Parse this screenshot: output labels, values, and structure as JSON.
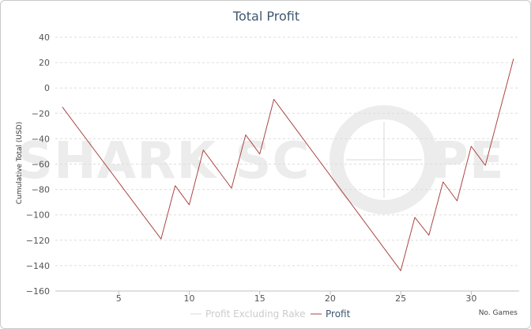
{
  "chart_data": {
    "type": "line",
    "title": "Total Profit",
    "xlabel": "No. Games",
    "ylabel": "Cumulative Total (USD)",
    "xlim": [
      0.5,
      33.4
    ],
    "ylim": [
      -160,
      40
    ],
    "x_ticks": [
      5,
      10,
      15,
      20,
      25,
      30
    ],
    "y_ticks": [
      40,
      20,
      0,
      -20,
      -40,
      -60,
      -80,
      -100,
      -120,
      -140,
      -160
    ],
    "y_tick_labels": [
      "40",
      "20",
      "0",
      "−20",
      "−40",
      "−60",
      "−80",
      "−100",
      "−120",
      "−140",
      "−160"
    ],
    "grid": true,
    "legend_position": "bottom-center",
    "watermark": {
      "left": "SHARK SC",
      "right": "PE"
    },
    "series": [
      {
        "name": "Profit Excluding Rake",
        "color": "#d9d9d9",
        "visible": false,
        "x": [],
        "y": []
      },
      {
        "name": "Profit",
        "color": "#aa4643",
        "visible": true,
        "x": [
          1,
          8,
          9,
          10,
          11,
          13,
          14,
          15,
          16,
          25,
          26,
          27,
          28,
          29,
          30,
          31,
          33
        ],
        "y": [
          -15,
          -119,
          -77,
          -92,
          -49,
          -79,
          -37,
          -52,
          -9,
          -144,
          -102,
          -116,
          -74,
          -89,
          -46,
          -61,
          23
        ]
      }
    ]
  }
}
